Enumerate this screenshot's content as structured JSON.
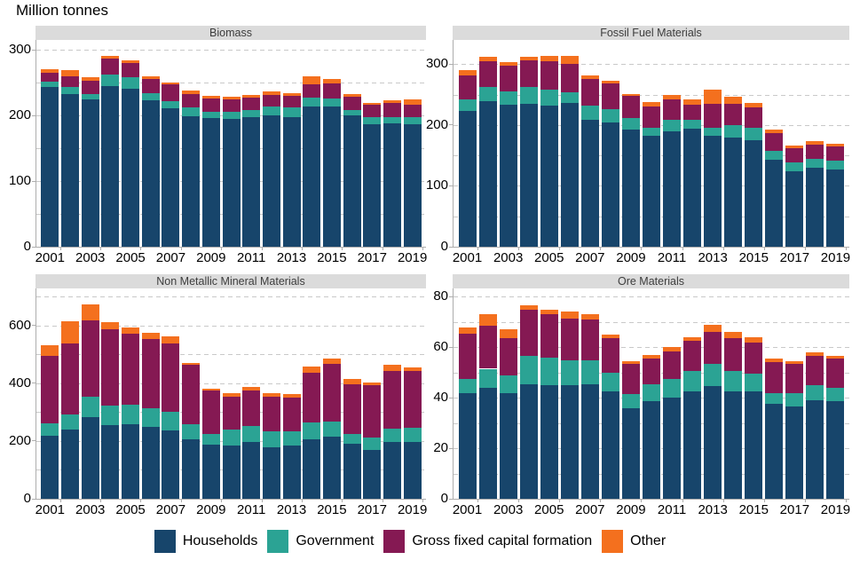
{
  "page_title": "Million tonnes",
  "colors": {
    "households": "#17456B",
    "government": "#2BA394",
    "gross_fixed_capital_formation": "#851953",
    "other": "#F4701E",
    "panel_header_bg": "#DBDBDB",
    "gridline": "#C9C9C9",
    "axis_line": "#ADADAD"
  },
  "legend": {
    "items": [
      {
        "label": "Households",
        "color": "#17456B"
      },
      {
        "label": "Government",
        "color": "#2BA394"
      },
      {
        "label": "Gross fixed capital formation",
        "color": "#851953"
      },
      {
        "label": "Other",
        "color": "#F4701E"
      }
    ]
  },
  "chart_data": [
    {
      "type": "bar",
      "stacked": true,
      "title": "Biomass",
      "xlabel": "",
      "ylabel": "Million tonnes",
      "ylim": [
        0,
        315
      ],
      "grid_step": 50,
      "grid": true,
      "legend_position": "bottom",
      "yticks": [
        0,
        100,
        200,
        300
      ],
      "xticks": [
        "2001",
        "2003",
        "2005",
        "2007",
        "2009",
        "2011",
        "2013",
        "2015",
        "2017",
        "2019"
      ],
      "categories": [
        "2001",
        "2002",
        "2003",
        "2004",
        "2005",
        "2006",
        "2007",
        "2008",
        "2009",
        "2010",
        "2011",
        "2012",
        "2013",
        "2014",
        "2015",
        "2016",
        "2017",
        "2018",
        "2019"
      ],
      "series": [
        {
          "name": "Households",
          "color": "#17456B",
          "values": [
            243,
            233,
            225,
            245,
            240,
            223,
            211,
            199,
            196,
            195,
            197,
            200,
            198,
            214,
            213,
            200,
            187,
            188,
            187
          ]
        },
        {
          "name": "Government",
          "color": "#2BA394",
          "values": [
            8,
            10,
            8,
            17,
            18,
            11,
            11,
            13,
            10,
            11,
            11,
            13,
            14,
            13,
            13,
            8,
            10,
            10,
            11
          ]
        },
        {
          "name": "Gross fixed capital formation",
          "color": "#851953",
          "values": [
            14,
            17,
            20,
            24,
            22,
            21,
            25,
            21,
            20,
            18,
            19,
            18,
            18,
            21,
            23,
            21,
            19,
            21,
            19
          ]
        },
        {
          "name": "Other",
          "color": "#F4701E",
          "values": [
            5,
            9,
            5,
            5,
            4,
            5,
            3,
            5,
            4,
            4,
            4,
            5,
            4,
            11,
            6,
            4,
            3,
            4,
            8
          ]
        }
      ]
    },
    {
      "type": "bar",
      "stacked": true,
      "title": "Fossil Fuel Materials",
      "xlabel": "",
      "ylabel": "Million tonnes",
      "ylim": [
        0,
        340
      ],
      "grid_step": 50,
      "grid": true,
      "legend_position": "bottom",
      "yticks": [
        0,
        100,
        200,
        300
      ],
      "xticks": [
        "2001",
        "2003",
        "2005",
        "2007",
        "2009",
        "2011",
        "2013",
        "2015",
        "2017",
        "2019"
      ],
      "categories": [
        "2001",
        "2002",
        "2003",
        "2004",
        "2005",
        "2006",
        "2007",
        "2008",
        "2009",
        "2010",
        "2011",
        "2012",
        "2013",
        "2014",
        "2015",
        "2016",
        "2017",
        "2018",
        "2019"
      ],
      "series": [
        {
          "name": "Households",
          "color": "#17456B",
          "values": [
            223,
            240,
            233,
            235,
            232,
            237,
            209,
            204,
            193,
            183,
            190,
            194,
            183,
            179,
            175,
            143,
            124,
            130,
            127
          ]
        },
        {
          "name": "Government",
          "color": "#2BA394",
          "values": [
            19,
            22,
            22,
            27,
            27,
            17,
            23,
            22,
            19,
            12,
            19,
            14,
            13,
            21,
            21,
            15,
            14,
            14,
            14
          ]
        },
        {
          "name": "Gross fixed capital formation",
          "color": "#851953",
          "values": [
            40,
            43,
            43,
            44,
            46,
            46,
            44,
            43,
            36,
            36,
            33,
            26,
            39,
            35,
            33,
            29,
            24,
            24,
            24
          ]
        },
        {
          "name": "Other",
          "color": "#F4701E",
          "values": [
            8,
            7,
            5,
            7,
            9,
            14,
            6,
            4,
            3,
            7,
            8,
            8,
            24,
            12,
            8,
            5,
            4,
            5,
            5
          ]
        }
      ]
    },
    {
      "type": "bar",
      "stacked": true,
      "title": "Non Metallic Mineral Materials",
      "xlabel": "",
      "ylabel": "Million tonnes",
      "ylim": [
        0,
        728
      ],
      "grid_step": 100,
      "grid": true,
      "legend_position": "bottom",
      "yticks": [
        0,
        200,
        400,
        600
      ],
      "xticks": [
        "2001",
        "2003",
        "2005",
        "2007",
        "2009",
        "2011",
        "2013",
        "2015",
        "2017",
        "2019"
      ],
      "categories": [
        "2001",
        "2002",
        "2003",
        "2004",
        "2005",
        "2006",
        "2007",
        "2008",
        "2009",
        "2010",
        "2011",
        "2012",
        "2013",
        "2014",
        "2015",
        "2016",
        "2017",
        "2018",
        "2019"
      ],
      "series": [
        {
          "name": "Households",
          "color": "#17456B",
          "values": [
            218,
            241,
            282,
            256,
            258,
            248,
            238,
            207,
            187,
            185,
            197,
            178,
            185,
            205,
            216,
            189,
            168,
            197,
            197
          ]
        },
        {
          "name": "Government",
          "color": "#2BA394",
          "values": [
            42,
            51,
            72,
            67,
            68,
            65,
            62,
            51,
            36,
            54,
            55,
            55,
            50,
            58,
            51,
            36,
            43,
            46,
            49
          ]
        },
        {
          "name": "Gross fixed capital formation",
          "color": "#851953",
          "values": [
            235,
            246,
            264,
            265,
            245,
            241,
            239,
            206,
            152,
            115,
            122,
            119,
            114,
            174,
            199,
            172,
            182,
            198,
            196
          ]
        },
        {
          "name": "Other",
          "color": "#F4701E",
          "values": [
            38,
            75,
            54,
            22,
            21,
            19,
            23,
            6,
            6,
            13,
            14,
            14,
            15,
            21,
            18,
            17,
            10,
            23,
            13
          ]
        }
      ]
    },
    {
      "type": "bar",
      "stacked": true,
      "title": "Ore Materials",
      "xlabel": "",
      "ylabel": "Million tonnes",
      "ylim": [
        0,
        83.3
      ],
      "grid_step": 10,
      "grid": true,
      "legend_position": "bottom",
      "yticks": [
        0,
        20,
        40,
        60,
        80
      ],
      "xticks": [
        "2001",
        "2003",
        "2005",
        "2007",
        "2009",
        "2011",
        "2013",
        "2015",
        "2017",
        "2019"
      ],
      "categories": [
        "2001",
        "2002",
        "2003",
        "2004",
        "2005",
        "2006",
        "2007",
        "2008",
        "2009",
        "2010",
        "2011",
        "2012",
        "2013",
        "2014",
        "2015",
        "2016",
        "2017",
        "2018",
        "2019"
      ],
      "series": [
        {
          "name": "Households",
          "color": "#17456B",
          "values": [
            42,
            44,
            42,
            45.5,
            45,
            45,
            45.5,
            42.5,
            36,
            38.5,
            40,
            42.5,
            44.5,
            42.5,
            42.5,
            37.5,
            36.5,
            39,
            38.5
          ]
        },
        {
          "name": "Government",
          "color": "#2BA394",
          "values": [
            5.5,
            7.5,
            7,
            11,
            11,
            10,
            9.5,
            7.5,
            5.5,
            7,
            7.5,
            8,
            9,
            8,
            7,
            4.5,
            5.5,
            6,
            5.5
          ]
        },
        {
          "name": "Gross fixed capital formation",
          "color": "#851953",
          "values": [
            18,
            17,
            14.5,
            18.5,
            17,
            16.5,
            16,
            13.5,
            12,
            10,
            11,
            12,
            12.5,
            13,
            12.5,
            12,
            11.5,
            11.5,
            11.5
          ]
        },
        {
          "name": "Other",
          "color": "#F4701E",
          "values": [
            2.5,
            4.5,
            3.5,
            1.5,
            2,
            2.5,
            2,
            1.5,
            1,
            1.5,
            1.5,
            1.5,
            3,
            2.5,
            2,
            1.5,
            1,
            1.5,
            1
          ]
        }
      ]
    }
  ]
}
